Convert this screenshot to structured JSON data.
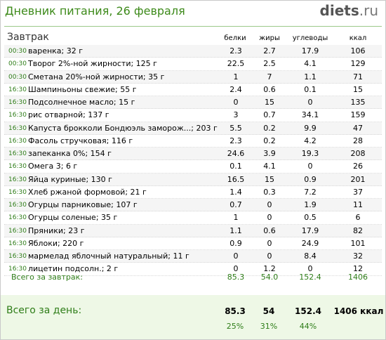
{
  "header": {
    "title": "Дневник питания, 26 февраля",
    "logo_main": "diets",
    "logo_tld": ".ru"
  },
  "meal": {
    "title": "Завтрак"
  },
  "columns": {
    "protein": "белки",
    "fat": "жиры",
    "carbs": "углеводы",
    "kcal": "ккал"
  },
  "rows": [
    {
      "time": "00:30",
      "name": "варенка; 32 г",
      "protein": "2.3",
      "fat": "2.7",
      "carbs": "17.9",
      "kcal": "106"
    },
    {
      "time": "00:30",
      "name": "Творог 2%-ной жирности; 125 г",
      "protein": "22.5",
      "fat": "2.5",
      "carbs": "4.1",
      "kcal": "129"
    },
    {
      "time": "00:30",
      "name": "Сметана 20%-ной жирности; 35 г",
      "protein": "1",
      "fat": "7",
      "carbs": "1.1",
      "kcal": "71"
    },
    {
      "time": "16:30",
      "name": "Шампиньоны свежие; 55 г",
      "protein": "2.4",
      "fat": "0.6",
      "carbs": "0.1",
      "kcal": "15"
    },
    {
      "time": "16:30",
      "name": "Подсолнечное масло; 15 г",
      "protein": "0",
      "fat": "15",
      "carbs": "0",
      "kcal": "135"
    },
    {
      "time": "16:30",
      "name": "рис отварной; 137 г",
      "protein": "3",
      "fat": "0.7",
      "carbs": "34.1",
      "kcal": "159"
    },
    {
      "time": "16:30",
      "name": "Капуста брокколи Бондюэль заморож...; 203 г",
      "protein": "5.5",
      "fat": "0.2",
      "carbs": "9.9",
      "kcal": "47"
    },
    {
      "time": "16:30",
      "name": "Фасоль стручковая; 116 г",
      "protein": "2.3",
      "fat": "0.2",
      "carbs": "4.2",
      "kcal": "28"
    },
    {
      "time": "16:30",
      "name": "запеканка 0%; 154 г",
      "protein": "24.6",
      "fat": "3.9",
      "carbs": "19.3",
      "kcal": "208"
    },
    {
      "time": "16:30",
      "name": "Омега 3; 6 г",
      "protein": "0.1",
      "fat": "4.1",
      "carbs": "0",
      "kcal": "26"
    },
    {
      "time": "16:30",
      "name": "Яйца куриные; 130 г",
      "protein": "16.5",
      "fat": "15",
      "carbs": "0.9",
      "kcal": "201"
    },
    {
      "time": "16:30",
      "name": "Хлеб ржаной формовой; 21 г",
      "protein": "1.4",
      "fat": "0.3",
      "carbs": "7.2",
      "kcal": "37"
    },
    {
      "time": "16:30",
      "name": "Огурцы парниковые; 107 г",
      "protein": "0.7",
      "fat": "0",
      "carbs": "1.9",
      "kcal": "11"
    },
    {
      "time": "16:30",
      "name": "Огурцы соленые; 35 г",
      "protein": "1",
      "fat": "0",
      "carbs": "0.5",
      "kcal": "6"
    },
    {
      "time": "16:30",
      "name": "Пряники; 23 г",
      "protein": "1.1",
      "fat": "0.6",
      "carbs": "17.9",
      "kcal": "82"
    },
    {
      "time": "16:30",
      "name": "Яблоки; 220 г",
      "protein": "0.9",
      "fat": "0",
      "carbs": "24.9",
      "kcal": "101"
    },
    {
      "time": "16:30",
      "name": "мармелад яблочный натуральный; 11 г",
      "protein": "0",
      "fat": "0",
      "carbs": "8.4",
      "kcal": "32"
    },
    {
      "time": "16:30",
      "name": "лицетин подсолн.; 2 г",
      "protein": "0",
      "fat": "1.2",
      "carbs": "0",
      "kcal": "12"
    }
  ],
  "meal_total": {
    "label": "Всего за завтрак:",
    "protein": "85.3",
    "fat": "54.0",
    "carbs": "152.4",
    "kcal": "1406"
  },
  "day_total": {
    "label": "Всего за день:",
    "protein": "85.3",
    "fat": "54",
    "carbs": "152.4",
    "kcal": "1406 ккал",
    "protein_pct": "25%",
    "fat_pct": "31%",
    "carbs_pct": "44%"
  }
}
